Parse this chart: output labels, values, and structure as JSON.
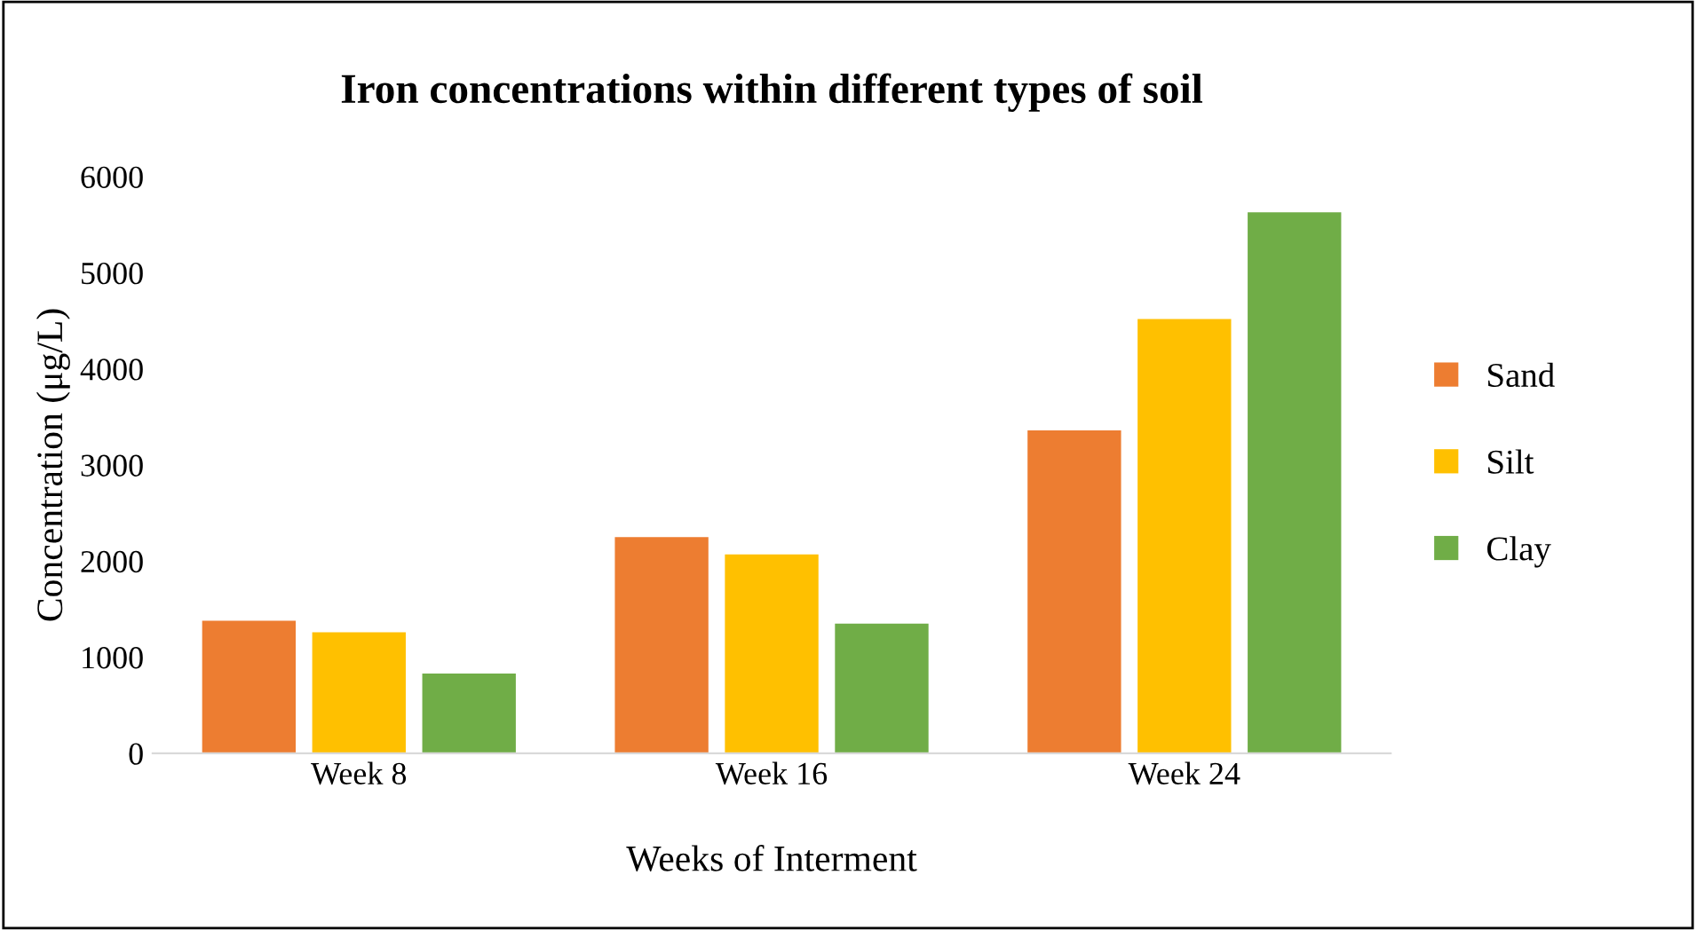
{
  "chart_data": {
    "type": "bar",
    "title": "Iron concentrations within different types of soil",
    "xlabel": "Weeks of Interment",
    "ylabel": "Concentration (μg/L)",
    "categories": [
      "Week 8",
      "Week 16",
      "Week 24"
    ],
    "series": [
      {
        "name": "Sand",
        "color": "#ed7d31",
        "values": [
          1380,
          2250,
          3360
        ]
      },
      {
        "name": "Silt",
        "color": "#ffc000",
        "values": [
          1260,
          2070,
          4520
        ]
      },
      {
        "name": "Clay",
        "color": "#70ad47",
        "values": [
          830,
          1350,
          5630
        ]
      }
    ],
    "ylim": [
      0,
      6000
    ],
    "yticks": [
      0,
      1000,
      2000,
      3000,
      4000,
      5000,
      6000
    ],
    "grid": false,
    "legend": "right"
  }
}
